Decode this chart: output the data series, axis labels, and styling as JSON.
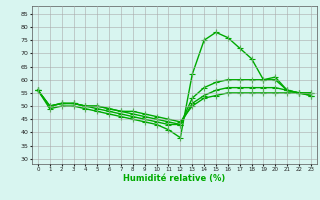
{
  "title": "",
  "xlabel": "Humidité relative (%)",
  "ylabel": "",
  "background_color": "#d8f5f0",
  "grid_color": "#aaaaaa",
  "line_color": "#00aa00",
  "marker": "+",
  "markersize": 4,
  "linewidth": 1.0,
  "xlim": [
    -0.5,
    23.5
  ],
  "ylim": [
    28,
    88
  ],
  "yticks": [
    30,
    35,
    40,
    45,
    50,
    55,
    60,
    65,
    70,
    75,
    80,
    85
  ],
  "xticks": [
    0,
    1,
    2,
    3,
    4,
    5,
    6,
    7,
    8,
    9,
    10,
    11,
    12,
    13,
    14,
    15,
    16,
    17,
    18,
    19,
    20,
    21,
    22,
    23
  ],
  "lines": [
    [
      56,
      49,
      50,
      50,
      49,
      48,
      47,
      46,
      45,
      44,
      43,
      41,
      38,
      62,
      75,
      78,
      76,
      72,
      68,
      60,
      61,
      56,
      55,
      54
    ],
    [
      56,
      50,
      51,
      51,
      50,
      49,
      48,
      47,
      46,
      45,
      44,
      43,
      43,
      53,
      57,
      59,
      60,
      60,
      60,
      60,
      60,
      56,
      55,
      55
    ],
    [
      56,
      50,
      51,
      51,
      50,
      50,
      49,
      48,
      47,
      46,
      45,
      44,
      43,
      51,
      54,
      56,
      57,
      57,
      57,
      57,
      57,
      56,
      55,
      55
    ],
    [
      56,
      50,
      51,
      51,
      50,
      50,
      49,
      48,
      48,
      47,
      46,
      45,
      44,
      50,
      53,
      54,
      55,
      55,
      55,
      55,
      55,
      55,
      55,
      54
    ]
  ]
}
